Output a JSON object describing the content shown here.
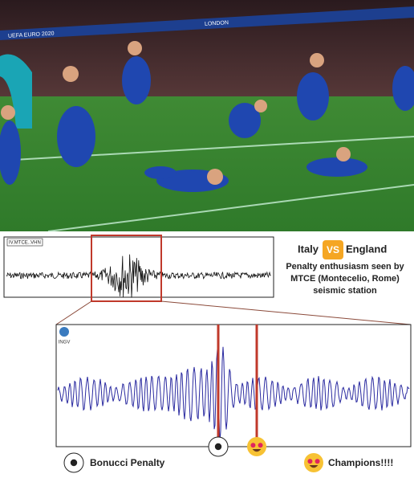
{
  "photo": {
    "banner": [
      "UEFA EURO 2020",
      "LONDON"
    ]
  },
  "top_trace": {
    "station": "IV.MTCE..VHN"
  },
  "headline": {
    "team1": "Italy",
    "vs": "VS",
    "team2": "England"
  },
  "caption": [
    "Penalty enthusiasm seen by",
    "MTCE (Montecelio, Rome)",
    "seismic station"
  ],
  "zoom": {
    "logo": "INGV"
  },
  "labels": [
    "Bonucci Penalty",
    "Champions!!!!"
  ]
}
